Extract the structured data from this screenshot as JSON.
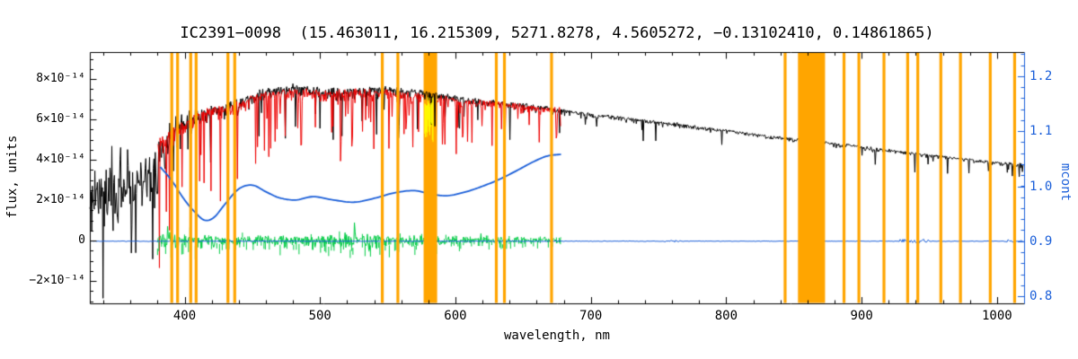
{
  "title": "IC2391−0098  (15.463011, 16.215309, 5271.8278, 4.5605272, −0.13102410, 0.14861865)",
  "axes": {
    "x": {
      "label": "wavelength, nm",
      "min": 330,
      "max": 1020,
      "major_ticks": [
        400,
        500,
        600,
        700,
        800,
        900,
        1000
      ],
      "minor_step": 20
    },
    "y_left": {
      "label": "flux, units",
      "unit": "1e-14",
      "range": [
        -3.11,
        9.33
      ],
      "minor_step": 0.5,
      "major_ticks": [
        {
          "value": 8,
          "label": "8×10⁻¹⁴"
        },
        {
          "value": 6,
          "label": "6×10⁻¹⁴"
        },
        {
          "value": 4,
          "label": "4×10⁻¹⁴"
        },
        {
          "value": 2,
          "label": "2×10⁻¹⁴"
        },
        {
          "value": 0,
          "label": "0"
        },
        {
          "value": -2,
          "label": "−2×10⁻¹⁴"
        }
      ]
    },
    "y_right": {
      "label": "mcont",
      "color": "#1B5FD9",
      "range": [
        0.787,
        1.244
      ],
      "minor_step": 0.02,
      "major_ticks": [
        {
          "value": 1.2,
          "label": "1.2"
        },
        {
          "value": 1.1,
          "label": "1.1"
        },
        {
          "value": 1.0,
          "label": "1.0"
        },
        {
          "value": 0.9,
          "label": "0.9"
        },
        {
          "value": 0.8,
          "label": "0.8"
        }
      ]
    }
  },
  "chart_data": {
    "type": "line",
    "title": "IC2391−0098  (15.463011, 16.215309, 5271.8278, 4.5605272, −0.13102410, 0.14861865)",
    "xlabel": "wavelength, nm",
    "ylabel": "flux, units",
    "ylabel_right": "mcont",
    "xlim": [
      330,
      1020
    ],
    "ylim_flux_1e14": [
      -3.11,
      9.33
    ],
    "ylim_mcont": [
      0.787,
      1.244
    ],
    "flux_unit": "1e-14 flux units",
    "grid": false,
    "series": [
      {
        "name": "observed-spectrum",
        "color": "#000000",
        "style": "noisy-absorption",
        "x": [
          330,
          345,
          360,
          375,
          385,
          395,
          410,
          425,
          440,
          460,
          480,
          500,
          520,
          540,
          560,
          580,
          600,
          620,
          640,
          660,
          680,
          700,
          720,
          740,
          760,
          780,
          800,
          820,
          840,
          860,
          880,
          900,
          920,
          940,
          960,
          980,
          1000,
          1020
        ],
        "mean": [
          2.3,
          2.5,
          2.7,
          3.2,
          4.5,
          5.5,
          6.3,
          6.7,
          7.0,
          7.5,
          7.7,
          7.6,
          7.5,
          7.6,
          7.55,
          7.4,
          7.2,
          7.0,
          6.85,
          6.7,
          6.5,
          6.3,
          6.15,
          6.0,
          5.85,
          5.65,
          5.5,
          5.3,
          5.15,
          5.0,
          4.85,
          4.7,
          4.5,
          4.35,
          4.2,
          4.05,
          3.9,
          3.8
        ],
        "noise": [
          2.4,
          2.4,
          2.4,
          2.3,
          2.0,
          1.7,
          1.5,
          1.3,
          1.2,
          1.0,
          0.95,
          0.95,
          1.0,
          0.9,
          0.85,
          0.8,
          0.75,
          0.7,
          0.65,
          0.6,
          0.5,
          0.45,
          0.45,
          0.4,
          0.4,
          0.35,
          0.35,
          0.3,
          0.35,
          0.4,
          0.35,
          0.35,
          0.3,
          0.35,
          0.3,
          0.28,
          0.3,
          0.32
        ]
      },
      {
        "name": "model-spectrum",
        "color": "#EE0000",
        "style": "noisy-absorption",
        "x_range": [
          380,
          678
        ],
        "x": [
          378,
          390,
          405,
          420,
          435,
          450,
          470,
          490,
          510,
          530,
          550,
          570,
          590,
          610,
          630,
          650,
          665,
          678
        ],
        "mean": [
          4.8,
          5.5,
          6.2,
          6.6,
          6.8,
          7.2,
          7.5,
          7.5,
          7.4,
          7.5,
          7.45,
          7.3,
          7.15,
          7.0,
          6.9,
          6.75,
          6.6,
          6.55
        ],
        "noise": [
          1.7,
          1.6,
          1.5,
          1.35,
          1.3,
          1.1,
          1.0,
          1.0,
          1.1,
          1.0,
          0.9,
          0.85,
          0.8,
          0.75,
          0.7,
          0.65,
          0.6,
          0.55
        ]
      },
      {
        "name": "residuals",
        "color": "#00CC44",
        "style": "scatter-around-zero",
        "x_range": [
          380,
          678
        ],
        "x": [
          378,
          395,
          410,
          430,
          450,
          470,
          490,
          510,
          525,
          540,
          560,
          580,
          600,
          620,
          640,
          660,
          678
        ],
        "amp": [
          0.85,
          0.95,
          0.9,
          0.65,
          0.55,
          0.6,
          0.65,
          0.8,
          0.95,
          0.8,
          0.6,
          0.55,
          0.5,
          0.45,
          0.45,
          0.4,
          0.35
        ]
      },
      {
        "name": "mcont-curve",
        "color": "#1B5FD9",
        "axis": "right",
        "style": "smooth-line",
        "x": [
          382,
          390,
          400,
          408,
          415,
          422,
          430,
          440,
          450,
          460,
          470,
          482,
          495,
          510,
          525,
          540,
          555,
          570,
          583,
          595,
          608,
          620,
          632,
          645,
          658,
          668,
          678
        ],
        "y": [
          1.035,
          1.012,
          0.975,
          0.952,
          0.938,
          0.944,
          0.968,
          0.995,
          1.002,
          0.99,
          0.979,
          0.975,
          0.981,
          0.975,
          0.971,
          0.978,
          0.988,
          0.992,
          0.985,
          0.983,
          0.99,
          1.0,
          1.012,
          1.028,
          1.045,
          1.055,
          1.058
        ]
      },
      {
        "name": "baseline",
        "color": "#1B5FD9",
        "axis": "right",
        "value": 0.9,
        "x_range": [
          330,
          1020
        ],
        "noise_bursts_nm": [
          [
            754,
            766
          ],
          [
            928,
            950
          ],
          [
            1006,
            1020
          ]
        ]
      }
    ],
    "masked_regions": {
      "color": "#FFA500",
      "thin_nm": [
        390.5,
        394.8,
        404.5,
        408.5,
        432,
        437,
        546,
        557.5,
        630.2,
        636.2,
        671,
        843.5,
        887,
        898,
        916.5,
        934,
        941.5,
        958.5,
        973,
        995,
        1013
      ],
      "wide_nm": [
        [
          576.5,
          586.5
        ],
        [
          853,
          873
        ]
      ]
    },
    "highlight": {
      "color": "#FFFF00",
      "range_nm": [
        577.4,
        583.6
      ],
      "flux_range_1e14": [
        4.8,
        7.2
      ]
    }
  }
}
